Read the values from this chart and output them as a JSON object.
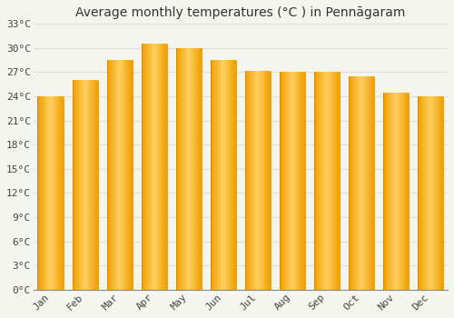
{
  "title": "Average monthly temperatures (°C ) in Pennāgaram",
  "months": [
    "Jan",
    "Feb",
    "Mar",
    "Apr",
    "May",
    "Jun",
    "Jul",
    "Aug",
    "Sep",
    "Oct",
    "Nov",
    "Dec"
  ],
  "values": [
    24.0,
    26.0,
    28.5,
    30.5,
    30.0,
    28.5,
    27.2,
    27.0,
    27.0,
    26.5,
    24.5,
    24.0
  ],
  "bar_color_center": "#FFD060",
  "bar_color_edge": "#F0A000",
  "ylim": [
    0,
    33
  ],
  "yticks": [
    0,
    3,
    6,
    9,
    12,
    15,
    18,
    21,
    24,
    27,
    30,
    33
  ],
  "background_color": "#f5f5f0",
  "plot_bg_color": "#f5f5f0",
  "grid_color": "#e0e0d8",
  "title_fontsize": 10,
  "tick_fontsize": 8,
  "bar_width": 0.75
}
